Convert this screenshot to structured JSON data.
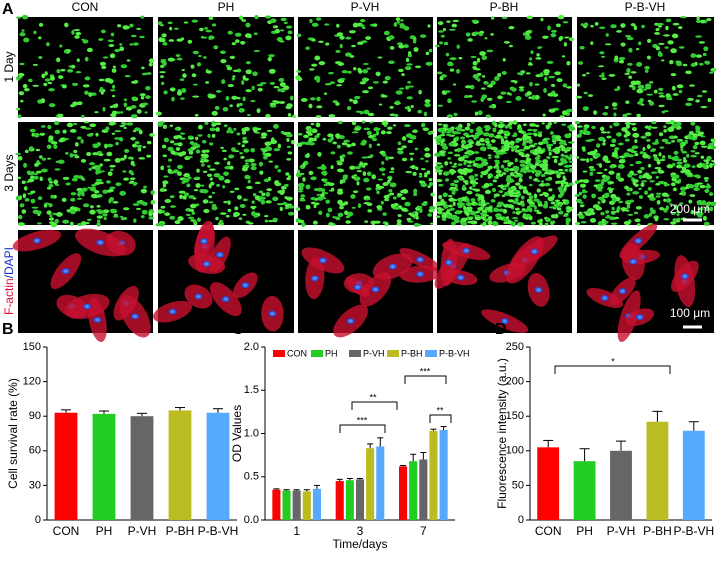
{
  "figure": {
    "panel_labels": [
      "A",
      "B",
      "C",
      "D"
    ],
    "column_labels": [
      "CON",
      "PH",
      "P-VH",
      "P-BH",
      "P-B-VH"
    ],
    "row_labels": [
      "1 Day",
      "3 Days"
    ],
    "stain_label": {
      "f_actin": "F-actin",
      "dapi": "/DAPI"
    },
    "scale_bars": [
      "200 μm",
      "100 μm"
    ]
  },
  "chart_data": [
    {
      "type": "bar",
      "y_label": "Cell survival rate (%)",
      "categories": [
        "CON",
        "PH",
        "P-VH",
        "P-BH",
        "P-B-VH"
      ],
      "values": [
        93,
        92,
        90,
        95,
        93
      ],
      "errors": [
        2.5,
        2.5,
        2.5,
        2.5,
        3.5
      ],
      "colors": [
        "#ff0000",
        "#22cc22",
        "#666666",
        "#bbbb22",
        "#55aaff"
      ],
      "ylim": [
        0,
        150
      ],
      "yticks": [
        0,
        30,
        60,
        90,
        120,
        150
      ]
    },
    {
      "type": "grouped-bar",
      "y_label": "OD Values",
      "x_label": "Time/days",
      "categories": [
        "1",
        "3",
        "7"
      ],
      "series": [
        {
          "name": "CON",
          "color": "#ff0000",
          "values": [
            0.35,
            0.45,
            0.62
          ],
          "errors": [
            0.01,
            0.02,
            0.01
          ]
        },
        {
          "name": "PH",
          "color": "#22cc22",
          "values": [
            0.34,
            0.46,
            0.68
          ],
          "errors": [
            0.01,
            0.02,
            0.08
          ]
        },
        {
          "name": "P-VH",
          "color": "#666666",
          "values": [
            0.34,
            0.47,
            0.7
          ],
          "errors": [
            0.01,
            0.01,
            0.08
          ]
        },
        {
          "name": "P-BH",
          "color": "#bbbb22",
          "values": [
            0.33,
            0.83,
            1.03
          ],
          "errors": [
            0.02,
            0.05,
            0.02
          ]
        },
        {
          "name": "P-B-VH",
          "color": "#55aaff",
          "values": [
            0.36,
            0.85,
            1.04
          ],
          "errors": [
            0.04,
            0.1,
            0.04
          ]
        }
      ],
      "ylim": [
        0,
        2
      ],
      "yticks": [
        {
          "value": 0,
          "label": "0.0"
        },
        0.5,
        {
          "value": 1,
          "label": "1.0"
        },
        1.5,
        {
          "value": 2,
          "label": "2.0"
        }
      ],
      "annotations": [
        "**",
        "***",
        "***",
        "**"
      ]
    },
    {
      "type": "bar",
      "y_label": "Fluorescence intensity (a.u.)",
      "categories": [
        "CON",
        "PH",
        "P-VH",
        "P-BH",
        "P-B-VH"
      ],
      "values": [
        105,
        85,
        100,
        142,
        129
      ],
      "errors": [
        10,
        18,
        14,
        15,
        13
      ],
      "colors": [
        "#ff0000",
        "#22cc22",
        "#666666",
        "#bbbb22",
        "#55aaff"
      ],
      "ylim": [
        0,
        250
      ],
      "yticks": [
        0,
        50,
        100,
        150,
        200,
        250
      ],
      "annotations": [
        "*"
      ]
    }
  ]
}
